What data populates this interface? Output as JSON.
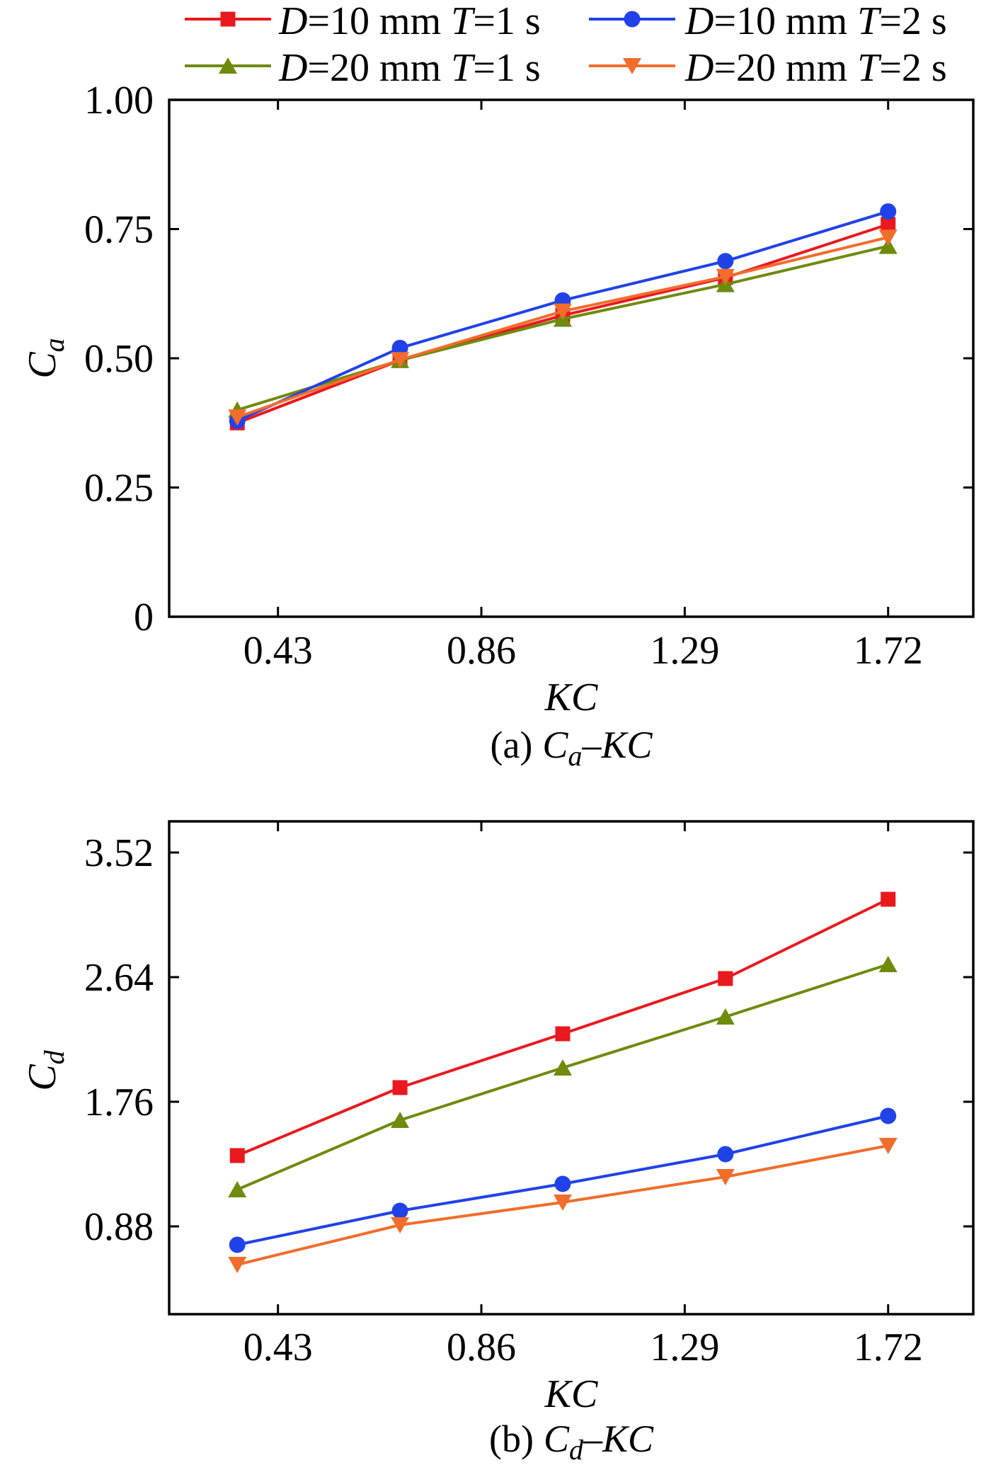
{
  "chart_data": [
    {
      "type": "line",
      "caption": {
        "prefix": "(a)",
        "symbol": "C",
        "subscript": "a",
        "separator": "–",
        "rhs": "KC"
      },
      "xlabel": "KC",
      "ylabel": {
        "symbol": "C",
        "subscript": "a"
      },
      "x": [
        0.344,
        0.688,
        1.032,
        1.376,
        1.72
      ],
      "xlim": [
        0.2,
        1.9
      ],
      "ylim": [
        0,
        1.0
      ],
      "xticks": [
        0.43,
        0.86,
        1.29,
        1.72
      ],
      "xticklabels": [
        "0.43",
        "0.86",
        "1.29",
        "1.72"
      ],
      "yticks": [
        0,
        0.25,
        0.5,
        0.75,
        1.0
      ],
      "yticklabels": [
        "0",
        "0.25",
        "0.50",
        "0.75",
        "1.00"
      ],
      "grid": false,
      "legend": "top",
      "series": [
        {
          "name": "D=10 mm T=1 s",
          "color": "#e9191e",
          "marker": "square",
          "values": [
            0.375,
            0.496,
            0.583,
            0.656,
            0.759
          ]
        },
        {
          "name": "D=20 mm T=1 s",
          "color": "#6e8b0c",
          "marker": "triangle-up",
          "values": [
            0.4,
            0.496,
            0.576,
            0.643,
            0.717
          ]
        },
        {
          "name": "D=10 mm T=2 s",
          "color": "#2042e8",
          "marker": "circle",
          "values": [
            0.379,
            0.52,
            0.612,
            0.688,
            0.784
          ]
        },
        {
          "name": "D=20 mm T=2 s",
          "color": "#f26c2b",
          "marker": "triangle-down",
          "values": [
            0.386,
            0.497,
            0.591,
            0.658,
            0.734
          ]
        }
      ]
    },
    {
      "type": "line",
      "caption": {
        "prefix": "(b)",
        "symbol": "C",
        "subscript": "d",
        "separator": "–",
        "rhs": "KC"
      },
      "xlabel": "KC",
      "ylabel": {
        "symbol": "C",
        "subscript": "d"
      },
      "x": [
        0.344,
        0.688,
        1.032,
        1.376,
        1.72
      ],
      "xlim": [
        0.2,
        1.9
      ],
      "ylim": [
        0.26,
        3.74
      ],
      "xticks": [
        0.43,
        0.86,
        1.29,
        1.72
      ],
      "xticklabels": [
        "0.43",
        "0.86",
        "1.29",
        "1.72"
      ],
      "yticks": [
        0.88,
        1.76,
        2.64,
        3.52
      ],
      "yticklabels": [
        "0.88",
        "1.76",
        "2.64",
        "3.52"
      ],
      "grid": false,
      "series": [
        {
          "values": [
            1.38,
            1.86,
            2.24,
            2.63,
            3.19
          ]
        },
        {
          "values": [
            1.14,
            1.63,
            2.0,
            2.36,
            2.73
          ]
        },
        {
          "values": [
            0.75,
            0.99,
            1.18,
            1.39,
            1.66
          ]
        },
        {
          "values": [
            0.61,
            0.89,
            1.05,
            1.23,
            1.45
          ]
        }
      ]
    }
  ]
}
